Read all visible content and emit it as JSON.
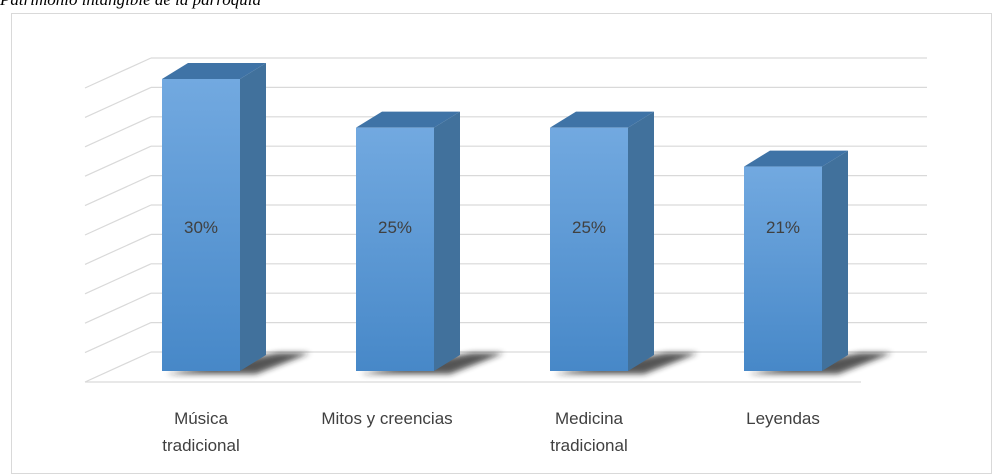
{
  "caption": "Patrimonio intangible de la parroquia",
  "chart_data": {
    "type": "bar",
    "style": "3d-cylinder-columns",
    "categories": [
      [
        "Música",
        "tradicional"
      ],
      [
        "Mitos y creencias"
      ],
      [
        "Medicina",
        "tradicional"
      ],
      [
        "Leyendas"
      ]
    ],
    "values": [
      30,
      25,
      25,
      21
    ],
    "value_labels": [
      "30%",
      "25%",
      "25%",
      "21%"
    ],
    "grid": true,
    "legend": "none",
    "colors": {
      "front": "#5b9bd5",
      "front_light": "#72a9e0",
      "front_dark": "#4788c8",
      "side": "#41719c",
      "top": "#3f73a6",
      "shadow": "#1f1f1f",
      "grid": "#d9d9d9",
      "label": "#404040"
    }
  }
}
